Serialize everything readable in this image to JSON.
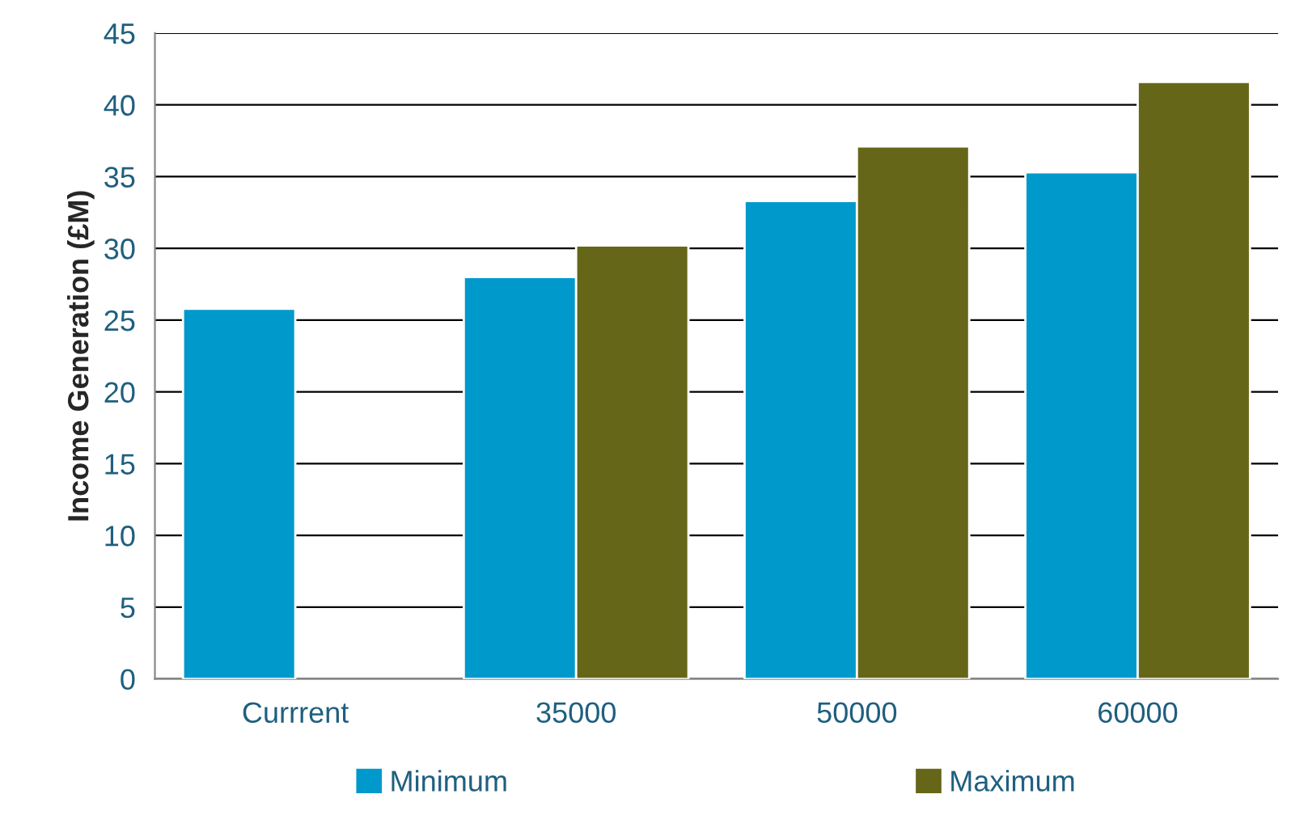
{
  "chart_data": {
    "type": "bar",
    "ylabel": "Income Generation (£M)",
    "categories": [
      "Currrent",
      "35000",
      "50000",
      "60000"
    ],
    "series": [
      {
        "name": "Minimum",
        "color": "#0099cc",
        "values": [
          25.8,
          28.0,
          33.3,
          35.3
        ]
      },
      {
        "name": "Maximum",
        "color": "#666619",
        "values": [
          null,
          30.2,
          37.1,
          41.6
        ]
      }
    ],
    "ylim": [
      0,
      45
    ],
    "yticks": [
      0,
      5,
      10,
      15,
      20,
      25,
      30,
      35,
      40,
      45
    ],
    "grid": "y",
    "legend": "bottom"
  }
}
